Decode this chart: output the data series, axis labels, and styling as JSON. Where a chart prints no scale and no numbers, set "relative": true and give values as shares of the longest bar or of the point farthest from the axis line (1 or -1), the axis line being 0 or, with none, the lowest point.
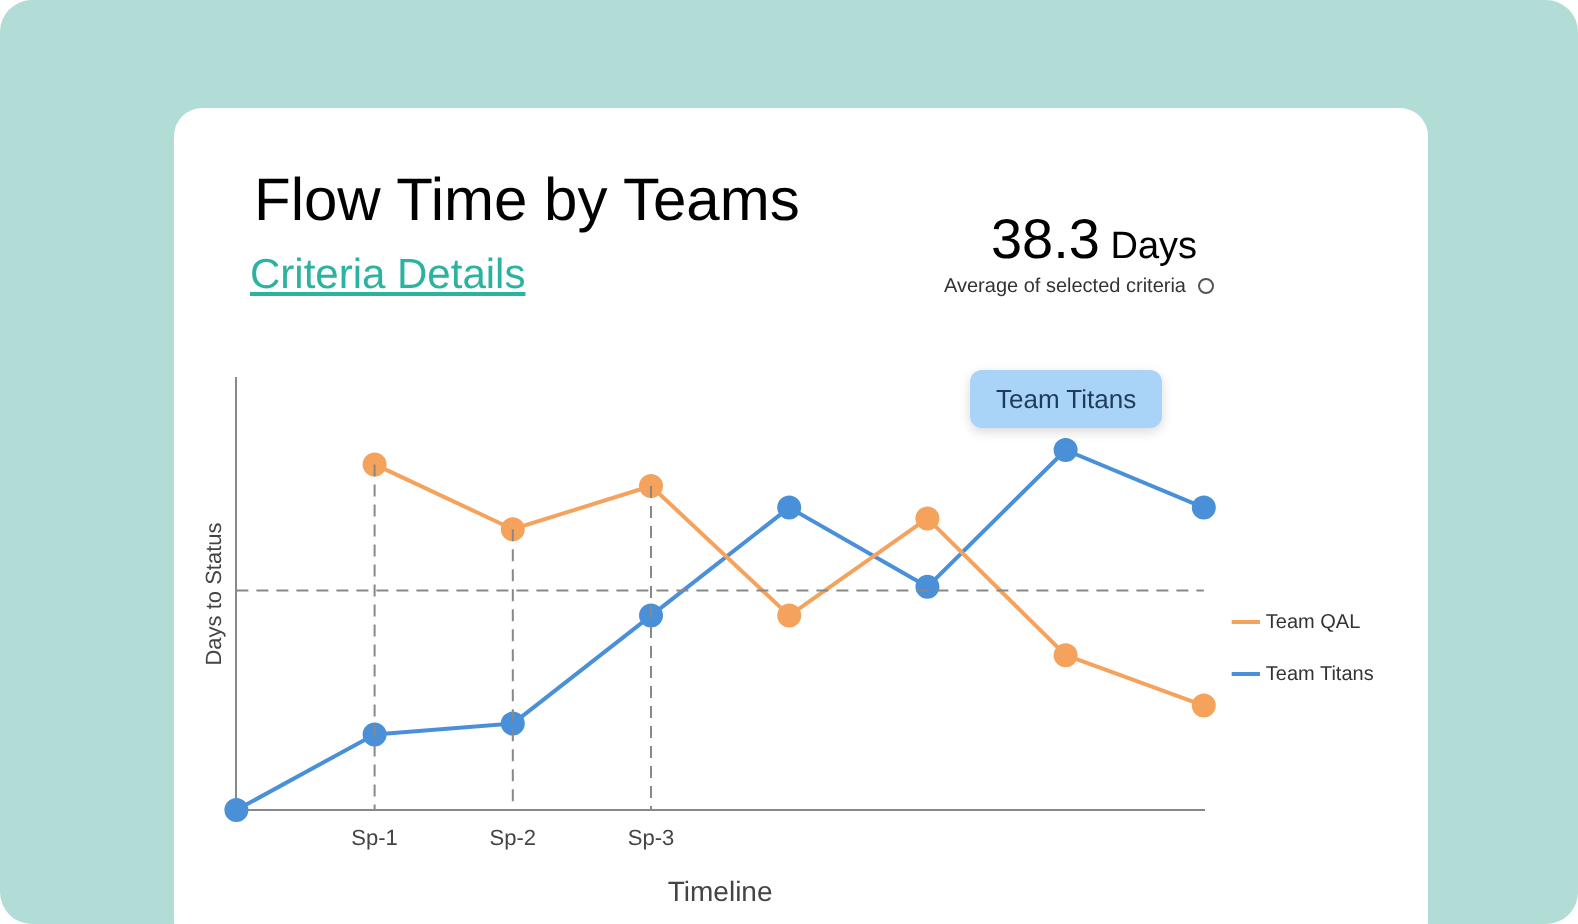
{
  "chart_data": {
    "type": "line",
    "title": "Flow Time by Teams",
    "subtitle": "Criteria Details",
    "xlabel": "Timeline",
    "ylabel": "Days to Status",
    "relative": true,
    "categories": [
      null,
      "Sp-1",
      "Sp-2",
      "Sp-3",
      null,
      null,
      null,
      null
    ],
    "series": [
      {
        "name": "Team QAL",
        "color": "#f5a25d",
        "values": [
          null,
          0.96,
          0.78,
          0.9,
          0.54,
          0.81,
          0.43,
          0.29
        ]
      },
      {
        "name": "Team Titans",
        "color": "#4a90d9",
        "values": [
          0,
          0.21,
          0.24,
          0.54,
          0.84,
          0.62,
          1,
          0.84
        ]
      }
    ],
    "ref_lines": [
      {
        "axis": "y",
        "value": 0.61,
        "line_style": "dashed"
      },
      {
        "axis": "x",
        "value": "Sp-1",
        "line_style": "dashed"
      },
      {
        "axis": "x",
        "value": "Sp-2",
        "line_style": "dashed"
      },
      {
        "axis": "x",
        "value": "Sp-3",
        "line_style": "dashed"
      }
    ],
    "annotations": [
      "38.3 Days",
      "Average of selected criteria",
      "Team Titans"
    ],
    "legend": "right",
    "grid": false,
    "marker": "circle",
    "line_style": "solid"
  }
}
